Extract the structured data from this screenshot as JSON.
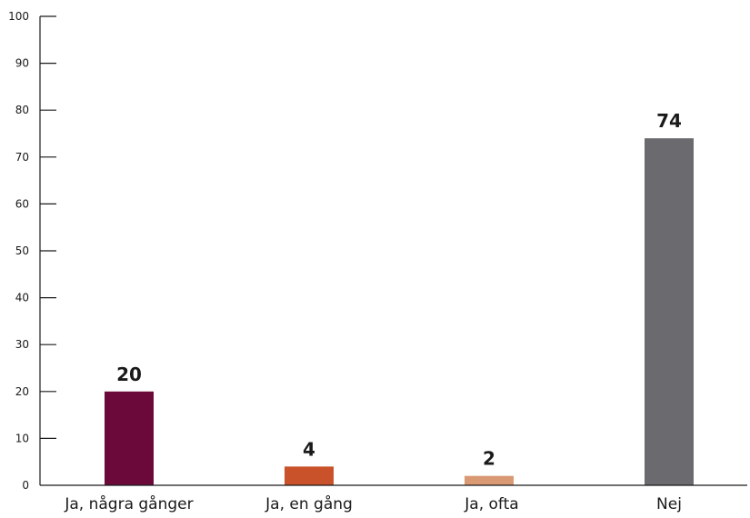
{
  "chart_data": {
    "type": "bar",
    "categories": [
      "Ja, några gånger",
      "Ja, en gång",
      "Ja, ofta",
      "Nej"
    ],
    "values": [
      20,
      4,
      2,
      74
    ],
    "colors": [
      "#6b0a3a",
      "#c9522b",
      "#d99a73",
      "#6b6b6f"
    ],
    "ylim": [
      0,
      100
    ],
    "yticks": [
      0,
      10,
      20,
      30,
      40,
      50,
      60,
      70,
      80,
      90,
      100
    ],
    "value_labels": [
      "20",
      "4",
      "2",
      "74"
    ],
    "grid": false,
    "legend": "none"
  }
}
